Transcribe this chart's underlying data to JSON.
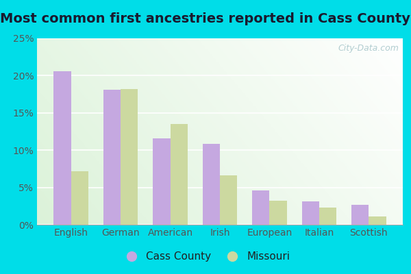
{
  "title": "Most common first ancestries reported in Cass County",
  "categories": [
    "English",
    "German",
    "American",
    "Irish",
    "European",
    "Italian",
    "Scottish"
  ],
  "cass_county": [
    20.6,
    18.1,
    11.6,
    10.8,
    4.6,
    3.1,
    2.7
  ],
  "missouri": [
    7.2,
    18.2,
    13.5,
    6.6,
    3.2,
    2.3,
    1.1
  ],
  "cass_color": "#c5a8e0",
  "missouri_color": "#ccd9a0",
  "ylim": [
    0,
    25
  ],
  "yticks": [
    0,
    5,
    10,
    15,
    20,
    25
  ],
  "ytick_labels": [
    "0%",
    "5%",
    "10%",
    "15%",
    "20%",
    "25%"
  ],
  "title_fontsize": 14,
  "tick_fontsize": 10,
  "legend_fontsize": 11,
  "outer_background": "#00dde8",
  "legend_labels": [
    "Cass County",
    "Missouri"
  ],
  "watermark": "City-Data.com"
}
